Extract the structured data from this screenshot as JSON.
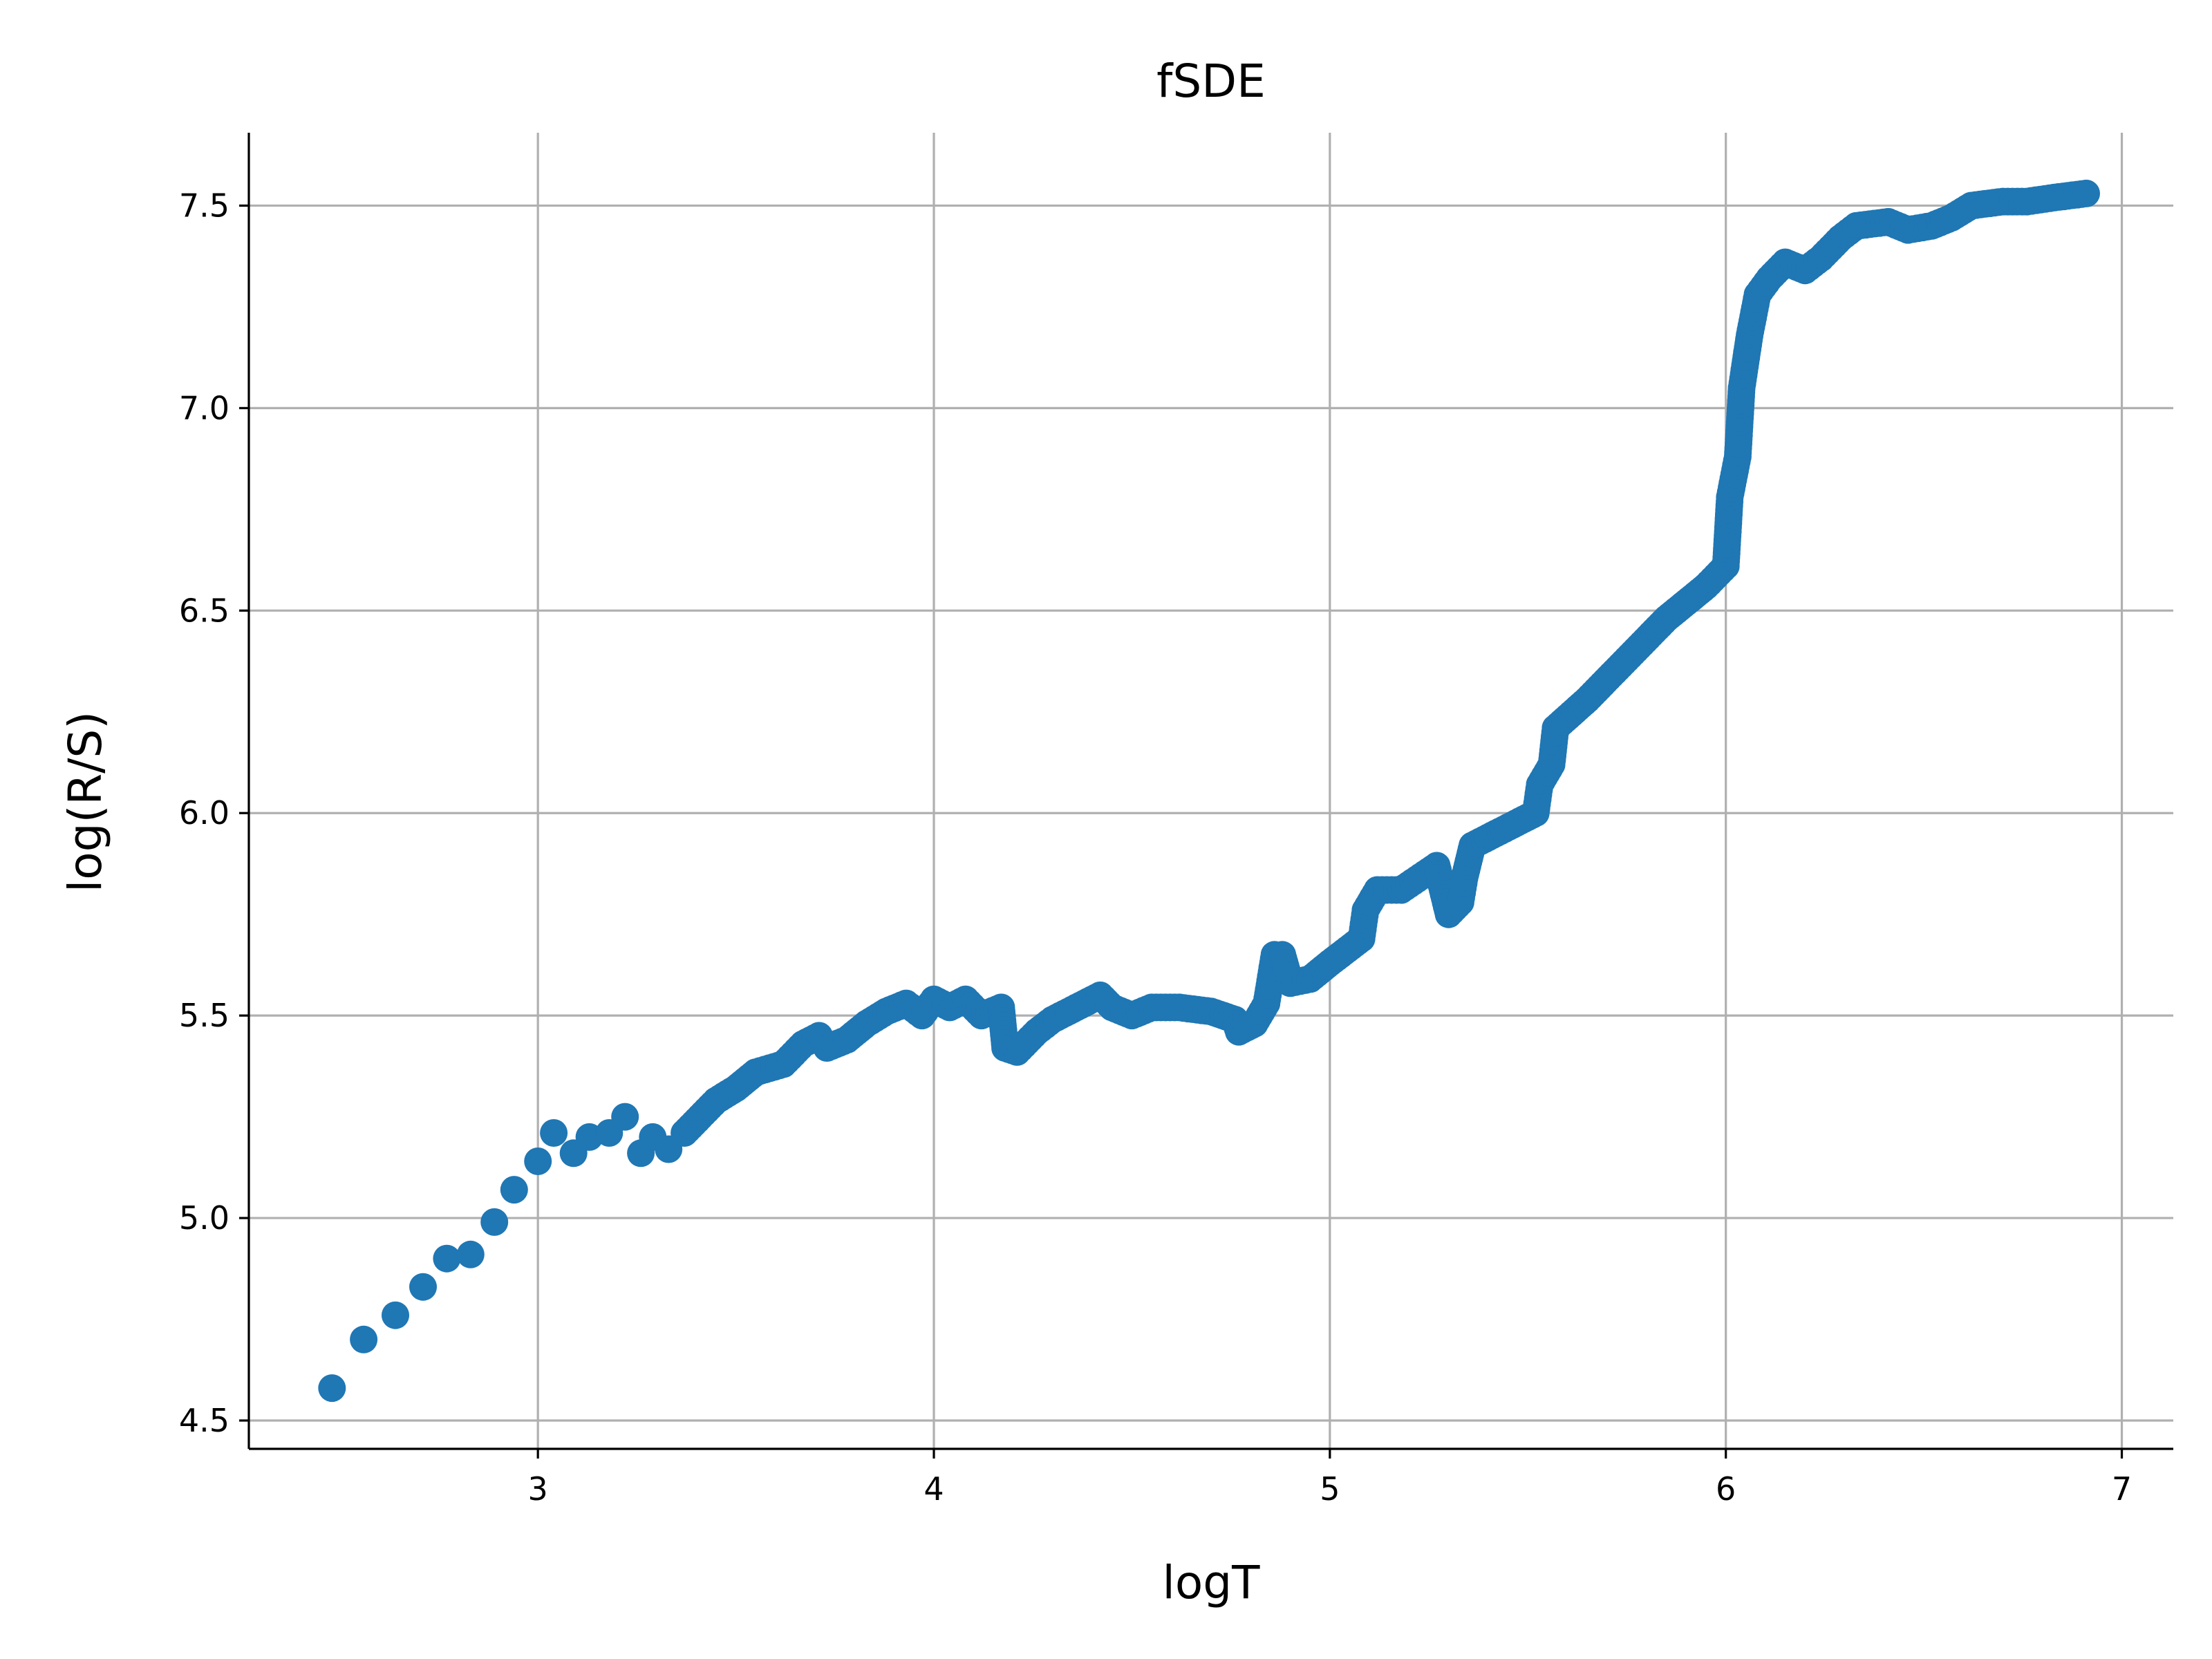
{
  "chart_data": {
    "type": "scatter",
    "title": "fSDE",
    "xlabel": "logT",
    "ylabel": "log(R/S)",
    "xlim": [
      2.27,
      7.13
    ],
    "ylim": [
      4.43,
      7.68
    ],
    "xticks": [
      3,
      4,
      5,
      6,
      7
    ],
    "yticks": [
      4.5,
      5.0,
      5.5,
      6.0,
      6.5,
      7.0,
      7.5
    ],
    "xtick_labels": [
      "3",
      "4",
      "5",
      "6",
      "7"
    ],
    "ytick_labels": [
      "4.5",
      "5.0",
      "5.5",
      "6.0",
      "6.5",
      "7.0",
      "7.5"
    ],
    "grid": true,
    "spines": "left-bottom",
    "color": "#1f77b4",
    "anchors": [
      [
        2.48,
        4.58
      ],
      [
        2.56,
        4.7
      ],
      [
        2.64,
        4.76
      ],
      [
        2.71,
        4.83
      ],
      [
        2.77,
        4.9
      ],
      [
        2.83,
        4.91
      ],
      [
        2.89,
        4.99
      ],
      [
        2.94,
        5.07
      ],
      [
        3.0,
        5.14
      ],
      [
        3.04,
        5.21
      ],
      [
        3.09,
        5.16
      ],
      [
        3.13,
        5.2
      ],
      [
        3.18,
        5.21
      ],
      [
        3.22,
        5.25
      ],
      [
        3.26,
        5.16
      ],
      [
        3.29,
        5.2
      ],
      [
        3.33,
        5.17
      ],
      [
        3.37,
        5.21
      ],
      [
        3.41,
        5.25
      ],
      [
        3.45,
        5.29
      ],
      [
        3.5,
        5.32
      ],
      [
        3.55,
        5.36
      ],
      [
        3.62,
        5.38
      ],
      [
        3.67,
        5.43
      ],
      [
        3.71,
        5.45
      ],
      [
        3.73,
        5.42
      ],
      [
        3.78,
        5.44
      ],
      [
        3.83,
        5.48
      ],
      [
        3.88,
        5.51
      ],
      [
        3.93,
        5.53
      ],
      [
        3.97,
        5.5
      ],
      [
        4.0,
        5.54
      ],
      [
        4.04,
        5.52
      ],
      [
        4.08,
        5.54
      ],
      [
        4.12,
        5.5
      ],
      [
        4.17,
        5.52
      ],
      [
        4.18,
        5.42
      ],
      [
        4.21,
        5.41
      ],
      [
        4.26,
        5.46
      ],
      [
        4.3,
        5.49
      ],
      [
        4.36,
        5.52
      ],
      [
        4.42,
        5.55
      ],
      [
        4.45,
        5.52
      ],
      [
        4.5,
        5.5
      ],
      [
        4.55,
        5.52
      ],
      [
        4.62,
        5.52
      ],
      [
        4.7,
        5.51
      ],
      [
        4.76,
        5.49
      ],
      [
        4.77,
        5.46
      ],
      [
        4.81,
        5.48
      ],
      [
        4.84,
        5.53
      ],
      [
        4.86,
        5.65
      ],
      [
        4.88,
        5.65
      ],
      [
        4.9,
        5.58
      ],
      [
        4.95,
        5.59
      ],
      [
        5.0,
        5.63
      ],
      [
        5.08,
        5.69
      ],
      [
        5.09,
        5.76
      ],
      [
        5.12,
        5.81
      ],
      [
        5.18,
        5.81
      ],
      [
        5.24,
        5.85
      ],
      [
        5.27,
        5.87
      ],
      [
        5.3,
        5.75
      ],
      [
        5.33,
        5.78
      ],
      [
        5.34,
        5.84
      ],
      [
        5.36,
        5.92
      ],
      [
        5.4,
        5.94
      ],
      [
        5.48,
        5.98
      ],
      [
        5.52,
        6.0
      ],
      [
        5.53,
        6.07
      ],
      [
        5.56,
        6.12
      ],
      [
        5.57,
        6.21
      ],
      [
        5.65,
        6.28
      ],
      [
        5.75,
        6.38
      ],
      [
        5.85,
        6.48
      ],
      [
        5.95,
        6.56
      ],
      [
        6.0,
        6.61
      ],
      [
        6.01,
        6.78
      ],
      [
        6.03,
        6.88
      ],
      [
        6.04,
        7.05
      ],
      [
        6.06,
        7.18
      ],
      [
        6.08,
        7.28
      ],
      [
        6.11,
        7.32
      ],
      [
        6.15,
        7.36
      ],
      [
        6.2,
        7.34
      ],
      [
        6.24,
        7.37
      ],
      [
        6.29,
        7.42
      ],
      [
        6.33,
        7.45
      ],
      [
        6.41,
        7.46
      ],
      [
        6.46,
        7.44
      ],
      [
        6.52,
        7.45
      ],
      [
        6.57,
        7.47
      ],
      [
        6.62,
        7.5
      ],
      [
        6.7,
        7.51
      ],
      [
        6.76,
        7.51
      ],
      [
        6.83,
        7.52
      ],
      [
        6.91,
        7.53
      ]
    ]
  }
}
